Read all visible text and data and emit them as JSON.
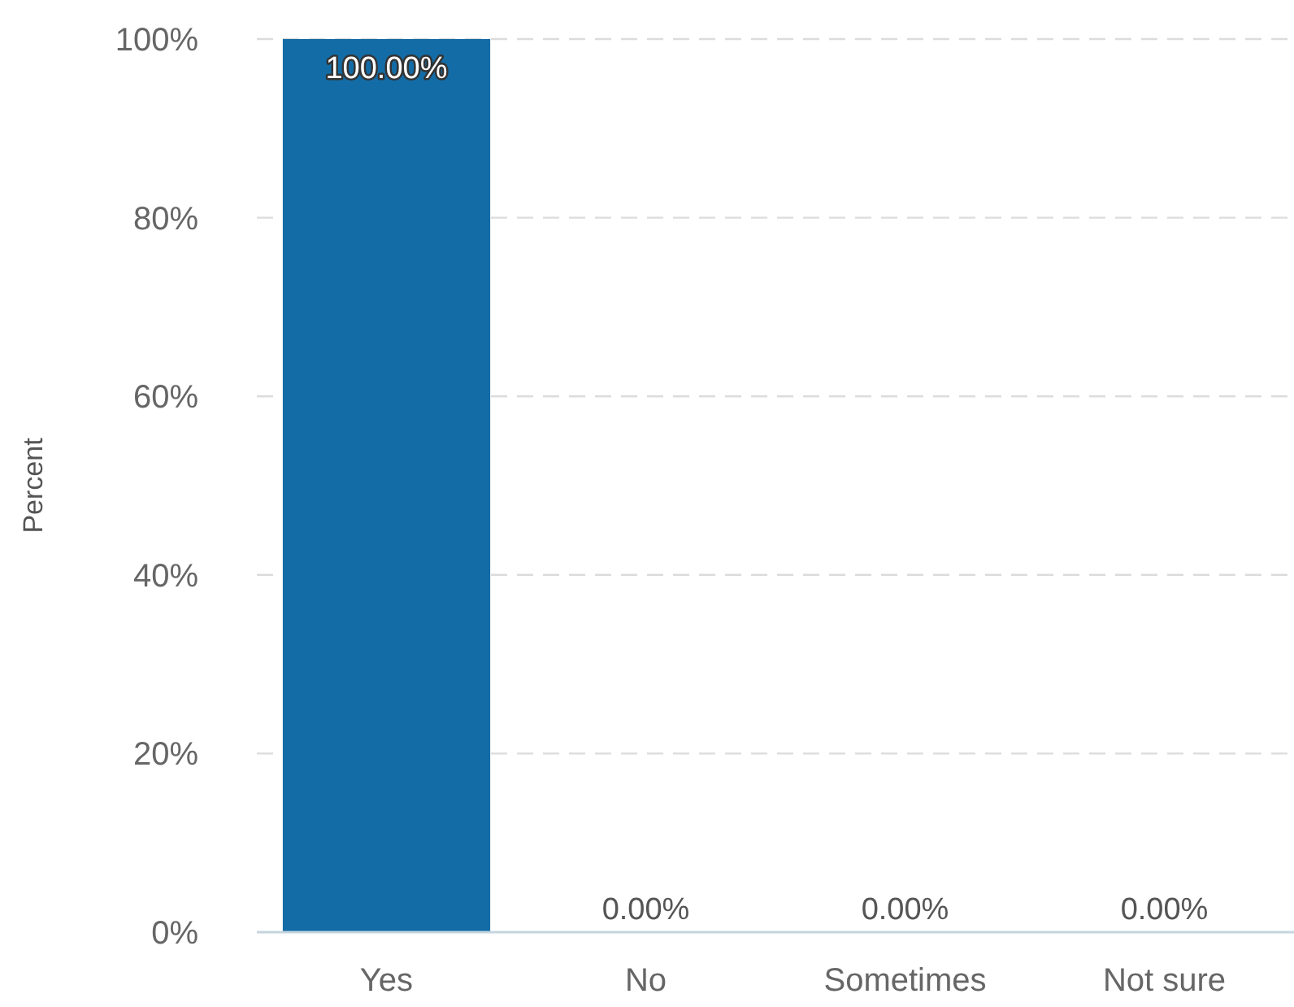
{
  "chart_data": {
    "type": "bar",
    "ylabel": "Percent",
    "categories": [
      "Yes",
      "No",
      "Sometimes",
      "Not sure"
    ],
    "values": [
      100,
      0,
      0,
      0
    ],
    "color": "#136ca6",
    "value_labels": [
      "100.00%",
      "0.00%",
      "0.00%",
      "0.00%"
    ],
    "ylim": [
      0,
      100
    ],
    "yticks": [
      {
        "value": 0,
        "label": "0%"
      },
      {
        "value": 20,
        "label": "20%"
      },
      {
        "value": 40,
        "label": "40%"
      },
      {
        "value": 60,
        "label": "60%"
      },
      {
        "value": 80,
        "label": "80%"
      },
      {
        "value": 100,
        "label": "100%"
      }
    ],
    "grid": "y"
  }
}
